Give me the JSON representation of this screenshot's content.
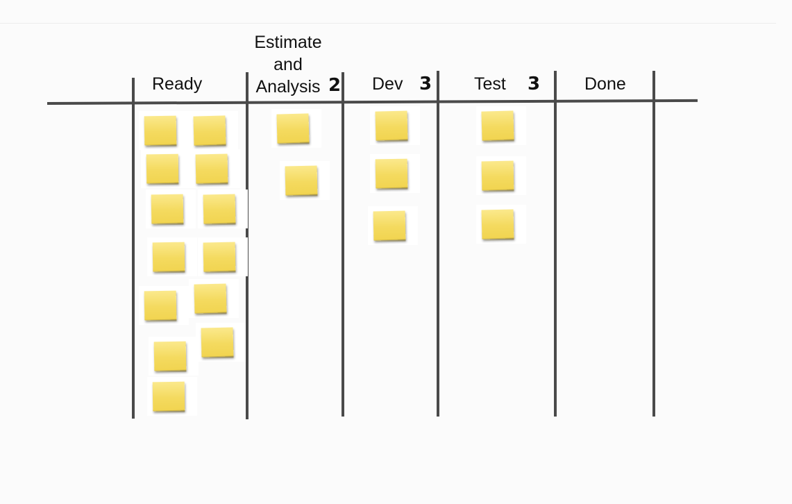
{
  "board": {
    "columns": [
      {
        "id": "ready",
        "lines": [
          "Ready"
        ],
        "wip": "",
        "cards": 13
      },
      {
        "id": "estimate",
        "lines": [
          "Estimate",
          "and",
          "Analysis"
        ],
        "wip": "2",
        "cards": 2
      },
      {
        "id": "dev",
        "lines": [
          "Dev"
        ],
        "wip": "3",
        "cards": 3
      },
      {
        "id": "test",
        "lines": [
          "Test"
        ],
        "wip": "3",
        "cards": 3
      },
      {
        "id": "done",
        "lines": [
          "Done"
        ],
        "wip": "",
        "cards": 0
      }
    ],
    "card_color": "#f4da5f",
    "line_color": "#4a4a4a"
  }
}
